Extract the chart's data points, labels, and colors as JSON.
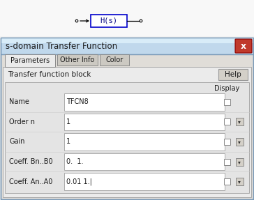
{
  "bg_color": "#f2f2f2",
  "dialog_title": "s-domain Transfer Function",
  "close_btn_color": "#c0392b",
  "tabs": [
    {
      "name": "Parameters",
      "active": true
    },
    {
      "name": "Other Info",
      "active": false
    },
    {
      "name": "Color",
      "active": false
    }
  ],
  "section_label": "Transfer function block",
  "help_btn": "Help",
  "display_label": "Display",
  "fields": [
    {
      "label": "Name",
      "value": "TFCN8",
      "has_dropdown": false
    },
    {
      "label": "Order n",
      "value": "1",
      "has_dropdown": true
    },
    {
      "label": "Gain",
      "value": "1",
      "has_dropdown": true
    },
    {
      "label": "Coeff. Bn..B0",
      "value": "0.  1.",
      "has_dropdown": true
    },
    {
      "label": "Coeff. An..A0",
      "value": "0.01 1.|",
      "has_dropdown": true
    }
  ],
  "block_label": "H(s)",
  "block_border_color": "#0000cc",
  "block_bg": "#ffffff",
  "top_bg": "#f2f2f2",
  "dialog_header_color": "#c0d8ec",
  "dialog_body_color": "#e0ddd8",
  "content_bg": "#ebebeb",
  "inner_panel_bg": "#e4e4e4",
  "field_bg": "#ffffff",
  "tab_active_bg": "#ebebeb",
  "tab_inactive_bg": "#ccc9c2",
  "wire_color": "#000000"
}
